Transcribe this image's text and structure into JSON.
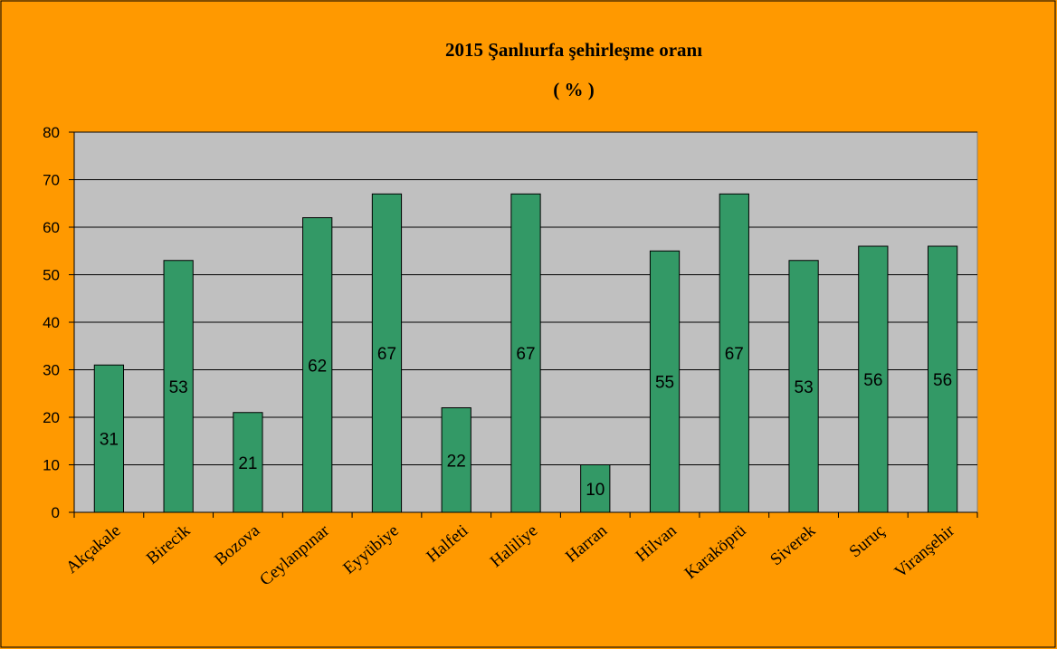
{
  "chart_data": {
    "type": "bar",
    "title": "2015 Şanlıurfa şehirleşme oranı",
    "subtitle": "( % )",
    "xlabel": "",
    "ylabel": "",
    "ylim": [
      0,
      80
    ],
    "yticks": [
      0,
      10,
      20,
      30,
      40,
      50,
      60,
      70,
      80
    ],
    "grid": true,
    "legend": "none",
    "categories": [
      "Akçakale",
      "Birecik",
      "Bozova",
      "Ceylanpınar",
      "Eyyübiye",
      "Halfeti",
      "Haliliye",
      "Harran",
      "Hilvan",
      "Karaköprü",
      "Siverek",
      "Suruç",
      "Viranşehir"
    ],
    "values": [
      31,
      53,
      21,
      62,
      67,
      22,
      67,
      10,
      55,
      67,
      53,
      56,
      56
    ],
    "data_labels": [
      "31",
      "53",
      "21",
      "62",
      "67",
      "22",
      "67",
      "10",
      "55",
      "67",
      "53",
      "56",
      "56"
    ],
    "colors": {
      "background": "#ff9900",
      "plot_area": "#c0c0c0",
      "bar": "#339966",
      "bar_border": "#000000",
      "gridline": "#000000"
    }
  }
}
